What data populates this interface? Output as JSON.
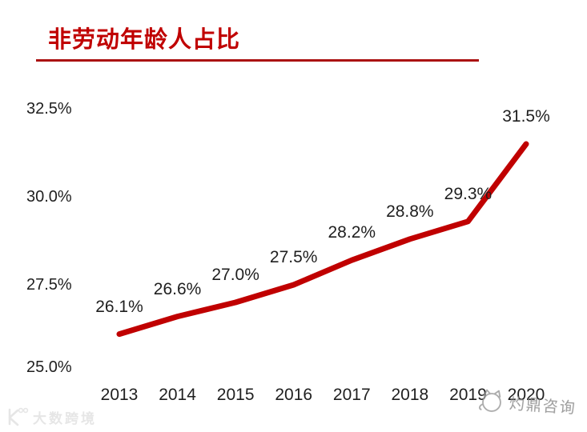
{
  "header": {
    "title": "非劳动年龄人占比"
  },
  "chart_data": {
    "type": "line",
    "title": "非劳动年龄人占比",
    "categories": [
      "2013",
      "2014",
      "2015",
      "2016",
      "2017",
      "2018",
      "2019",
      "2020"
    ],
    "values": [
      26.1,
      26.6,
      27.0,
      27.5,
      28.2,
      28.8,
      29.3,
      31.5
    ],
    "point_labels": [
      "26.1%",
      "26.6%",
      "27.0%",
      "27.5%",
      "28.2%",
      "28.8%",
      "29.3%",
      "31.5%"
    ],
    "y_ticks": [
      {
        "label": "32.5%",
        "value": 32.5
      },
      {
        "label": "30.0%",
        "value": 30.0
      },
      {
        "label": "27.5%",
        "value": 27.5
      },
      {
        "label": "25.0%",
        "value": 25.0
      }
    ],
    "ylim": [
      25.0,
      32.5
    ],
    "xlabel": "",
    "ylabel": "",
    "grid": false,
    "legend": "none",
    "line_color": "#c00000"
  },
  "colors": {
    "title_red": "#c00000",
    "underline_red": "#aa1111",
    "axis_gray": "#d9d9d9",
    "label_dark": "#1f1f1f",
    "watermark_gray": "#8a8a8a",
    "watermark_faint": "#e6e6e6"
  },
  "watermarks": {
    "bottom_right": "灼鼎咨询",
    "bottom_left": "大数跨境"
  }
}
